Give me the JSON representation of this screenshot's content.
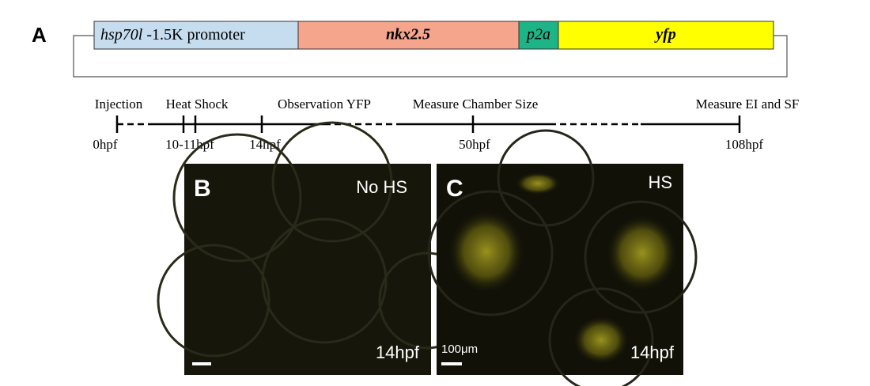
{
  "panels": {
    "a": "A",
    "b": "B",
    "c": "C"
  },
  "construct": {
    "promoter_gene": "hsp70l",
    "promoter_rest": "-1.5K promoter",
    "gene": "nkx2.5",
    "linker": "p2a",
    "reporter": "yfp"
  },
  "timeline": {
    "events": [
      "Injection",
      "Heat Shock",
      "Observation YFP",
      "Measure Chamber Size",
      "Measure EI and SF"
    ],
    "times": [
      "0hpf",
      "10-11hpf",
      "14hpf",
      "50hpf",
      "108hpf"
    ]
  },
  "images": {
    "b": {
      "condition": "No HS",
      "time": "14hpf"
    },
    "c": {
      "condition": "HS",
      "time": "14hpf",
      "scale_bar": "100μm"
    }
  }
}
